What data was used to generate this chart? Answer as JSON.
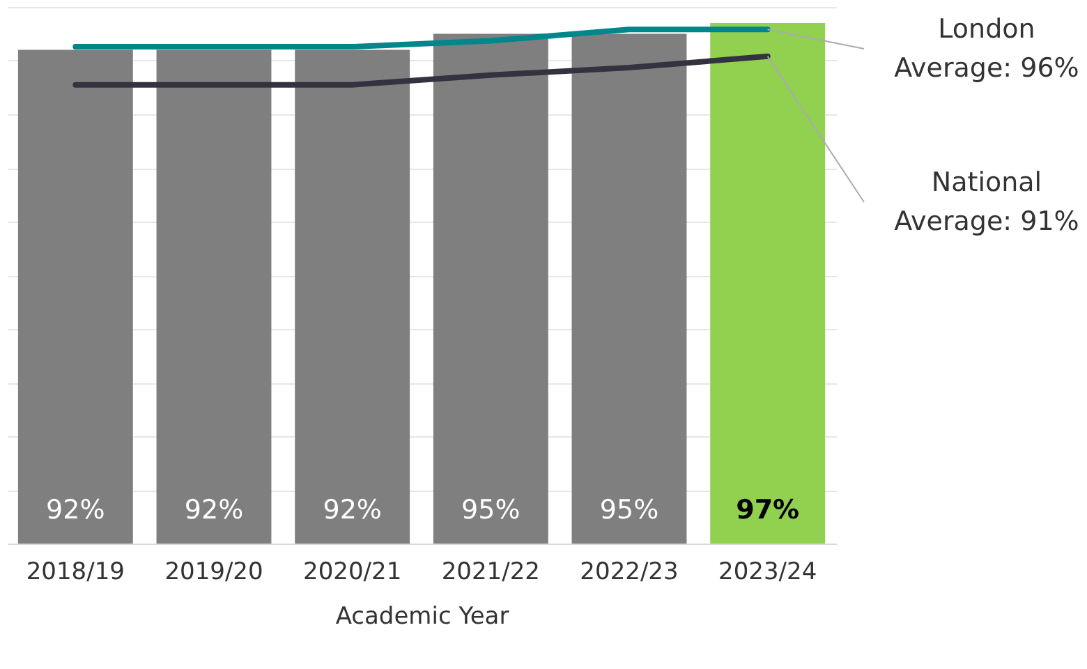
{
  "chart_data": {
    "type": "bar",
    "xlabel": "Academic Year",
    "categories": [
      "2018/19",
      "2019/20",
      "2020/21",
      "2021/22",
      "2022/23",
      "2023/24"
    ],
    "values": [
      92,
      92,
      92,
      95,
      95,
      97
    ],
    "value_labels": [
      "92%",
      "92%",
      "92%",
      "95%",
      "95%",
      "97%"
    ],
    "colors": [
      "#7f7f7f",
      "#7f7f7f",
      "#7f7f7f",
      "#7f7f7f",
      "#7f7f7f",
      "#92d050"
    ],
    "series": [
      {
        "name": "London Average: 96%",
        "type": "line",
        "color": "#00868b",
        "values": [
          92.6,
          92.6,
          92.6,
          93.7,
          95.8,
          95.8
        ]
      },
      {
        "name": "National Average: 91%",
        "type": "line",
        "color": "#333340",
        "values": [
          85.5,
          85.5,
          85.5,
          87.3,
          88.7,
          90.8
        ]
      }
    ],
    "line_style": "solid",
    "grid": "y",
    "tick_labels": "x",
    "legend": "right"
  }
}
